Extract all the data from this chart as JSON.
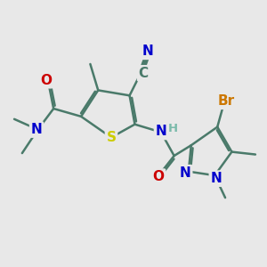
{
  "bg_color": "#e8e8e8",
  "bond_color": "#4a7a6a",
  "bond_width": 1.8,
  "atom_colors": {
    "N": "#0000cc",
    "O": "#cc0000",
    "S": "#cccc00",
    "Br": "#cc7700",
    "C": "#4a7a6a",
    "H": "#7abaaa"
  },
  "font_size": 11,
  "font_size_small": 9.5
}
